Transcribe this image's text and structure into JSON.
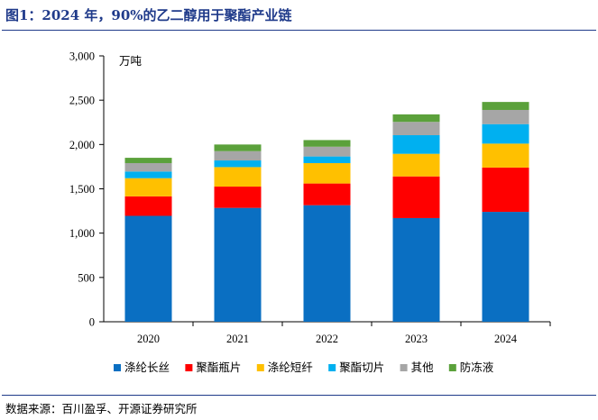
{
  "header": {
    "title": "图1：2024 年，90%的乙二醇用于聚酯产业链"
  },
  "footer": {
    "source": "数据来源：百川盈孚、开源证券研究所"
  },
  "chart_data": {
    "type": "bar",
    "stacked": true,
    "unit": "万吨",
    "categories": [
      "2020",
      "2021",
      "2022",
      "2023",
      "2024"
    ],
    "ylim": [
      0,
      3000
    ],
    "yticks": [
      0,
      500,
      1000,
      1500,
      2000,
      2500,
      3000
    ],
    "ytick_labels": [
      "0",
      "500",
      "1,000",
      "1,500",
      "2,000",
      "2,500",
      "3,000"
    ],
    "grid": false,
    "legend_position": "bottom",
    "series": [
      {
        "name": "涤纶长丝",
        "color": "#0a6fc2",
        "values": [
          1195,
          1285,
          1315,
          1170,
          1240
        ]
      },
      {
        "name": "聚酯瓶片",
        "color": "#ff0000",
        "values": [
          220,
          240,
          245,
          470,
          500
        ]
      },
      {
        "name": "涤纶短纤",
        "color": "#ffc000",
        "values": [
          205,
          220,
          230,
          255,
          270
        ]
      },
      {
        "name": "聚酯切片",
        "color": "#00b0f0",
        "values": [
          75,
          75,
          75,
          210,
          220
        ]
      },
      {
        "name": "其他",
        "color": "#a6a6a6",
        "values": [
          95,
          105,
          110,
          150,
          160
        ]
      },
      {
        "name": "防冻液",
        "color": "#5ba13b",
        "values": [
          60,
          75,
          75,
          85,
          90
        ]
      }
    ]
  }
}
